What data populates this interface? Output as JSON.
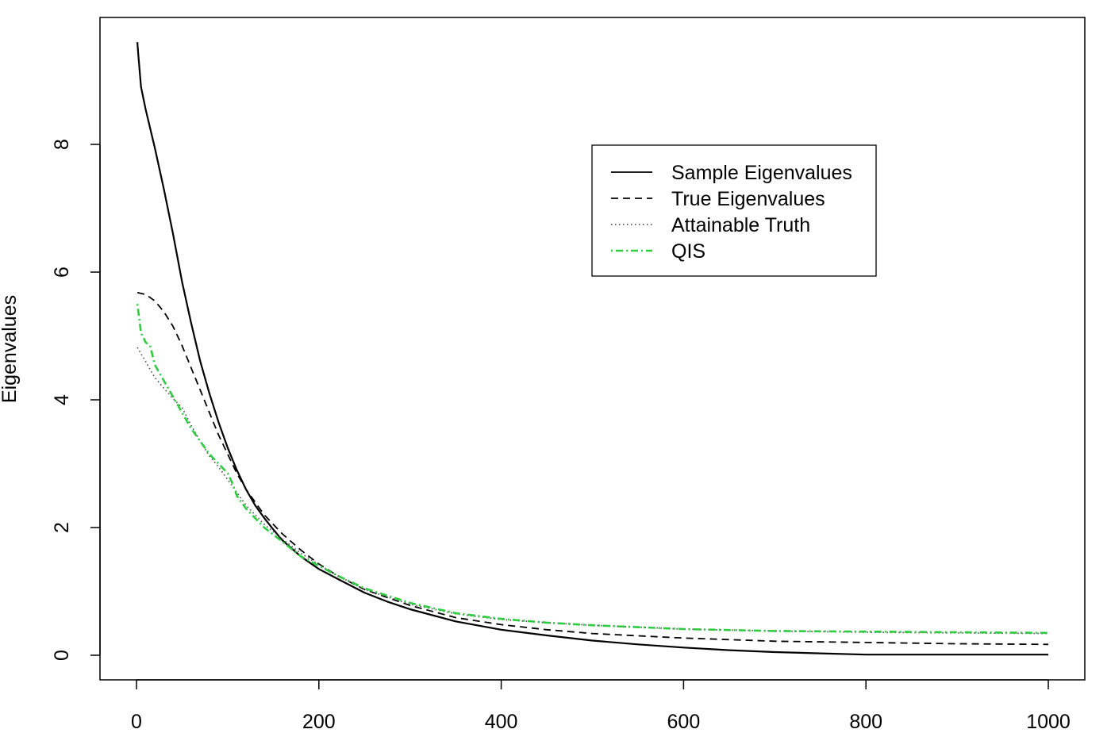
{
  "chart_data": {
    "type": "line",
    "title": "",
    "xlabel": "",
    "ylabel": "Eigenvalues",
    "xlim": [
      0,
      1000
    ],
    "ylim": [
      0,
      9.6
    ],
    "x_ticks": [
      0,
      200,
      400,
      600,
      800,
      1000
    ],
    "y_ticks": [
      0,
      2,
      4,
      6,
      8
    ],
    "grid": false,
    "legend_position": "top-right",
    "series": [
      {
        "name": "Sample Eigenvalues",
        "style": "solid",
        "color": "#000000",
        "x": [
          1,
          2,
          5,
          10,
          20,
          30,
          40,
          50,
          60,
          70,
          80,
          90,
          100,
          110,
          120,
          130,
          140,
          150,
          160,
          180,
          200,
          220,
          250,
          275,
          300,
          350,
          400,
          450,
          500,
          550,
          600,
          650,
          700,
          750,
          800,
          850,
          900,
          950,
          1000
        ],
        "values": [
          9.6,
          9.4,
          8.9,
          8.55,
          7.95,
          7.3,
          6.6,
          5.85,
          5.2,
          4.6,
          4.1,
          3.65,
          3.25,
          2.9,
          2.6,
          2.35,
          2.15,
          1.97,
          1.8,
          1.55,
          1.35,
          1.2,
          0.98,
          0.84,
          0.72,
          0.53,
          0.4,
          0.31,
          0.23,
          0.17,
          0.12,
          0.08,
          0.05,
          0.03,
          0.01,
          0.01,
          0.01,
          0.01,
          0.01
        ]
      },
      {
        "name": "True Eigenvalues",
        "style": "dashed",
        "color": "#000000",
        "x": [
          1,
          10,
          20,
          30,
          40,
          50,
          60,
          70,
          80,
          90,
          100,
          110,
          120,
          140,
          160,
          180,
          200,
          220,
          250,
          300,
          350,
          400,
          450,
          500,
          600,
          700,
          800,
          900,
          1000
        ],
        "values": [
          5.68,
          5.65,
          5.55,
          5.38,
          5.15,
          4.85,
          4.5,
          4.15,
          3.8,
          3.45,
          3.15,
          2.85,
          2.6,
          2.2,
          1.9,
          1.65,
          1.43,
          1.25,
          1.03,
          0.78,
          0.59,
          0.48,
          0.4,
          0.34,
          0.27,
          0.22,
          0.2,
          0.18,
          0.17
        ]
      },
      {
        "name": "Attainable Truth",
        "style": "dotted",
        "color": "#555555",
        "x": [
          1,
          10,
          20,
          30,
          40,
          50,
          60,
          70,
          80,
          90,
          100,
          110,
          120,
          140,
          160,
          180,
          200,
          220,
          250,
          300,
          350,
          400,
          450,
          500,
          600,
          700,
          800,
          900,
          1000
        ],
        "values": [
          4.82,
          4.6,
          4.35,
          4.18,
          4.02,
          3.88,
          3.6,
          3.35,
          3.12,
          2.95,
          2.75,
          2.55,
          2.35,
          2.05,
          1.82,
          1.6,
          1.42,
          1.25,
          1.03,
          0.8,
          0.65,
          0.56,
          0.51,
          0.47,
          0.41,
          0.38,
          0.36,
          0.35,
          0.34
        ]
      },
      {
        "name": "QIS",
        "style": "dashdot",
        "color": "#2ecc40",
        "x": [
          1,
          5,
          10,
          15,
          20,
          30,
          40,
          50,
          60,
          70,
          80,
          90,
          100,
          105,
          110,
          120,
          140,
          160,
          180,
          200,
          220,
          250,
          300,
          350,
          400,
          450,
          500,
          600,
          700,
          800,
          900,
          1000
        ],
        "values": [
          5.5,
          5.05,
          4.9,
          4.85,
          4.55,
          4.3,
          4.05,
          3.8,
          3.55,
          3.35,
          3.15,
          3.0,
          2.85,
          2.7,
          2.5,
          2.3,
          2.0,
          1.78,
          1.55,
          1.4,
          1.25,
          1.05,
          0.82,
          0.66,
          0.57,
          0.51,
          0.47,
          0.41,
          0.38,
          0.37,
          0.36,
          0.35
        ]
      }
    ]
  }
}
